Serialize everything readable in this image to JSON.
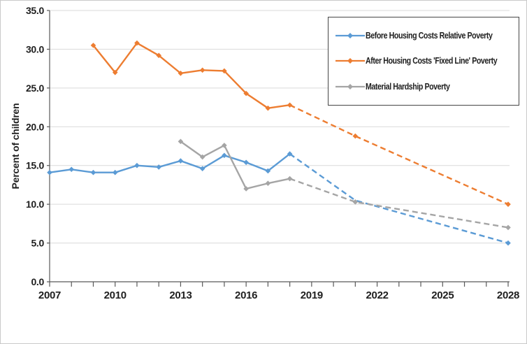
{
  "figure": {
    "background": "#ffffff",
    "border_color": "#c9c9c9"
  },
  "chart_data": {
    "type": "line",
    "title": "",
    "xlabel": "",
    "ylabel": "Percent of children",
    "ylim": [
      0,
      35
    ],
    "ytick_step": 5,
    "ytick_format_decimals": 1,
    "xlim": [
      2007,
      2028
    ],
    "xticks_labeled": [
      2007,
      2010,
      2013,
      2016,
      2019,
      2022,
      2025,
      2028
    ],
    "xtick_minor_step": 1,
    "grid": "horizontal",
    "grid_color": "#d9d9d9",
    "axis_color": "#595959",
    "text_color": "#1f1f1f",
    "legend_position": "top-right-inside",
    "series": [
      {
        "name": "Before Housing Costs Relative Poverty",
        "color": "#5b9bd5",
        "marker": "diamond",
        "solid": {
          "x": [
            2007,
            2008,
            2009,
            2010,
            2011,
            2012,
            2013,
            2014,
            2015,
            2016,
            2017,
            2018
          ],
          "y": [
            14.1,
            14.5,
            14.1,
            14.1,
            15.0,
            14.8,
            15.6,
            14.6,
            16.3,
            15.4,
            14.3,
            16.5
          ]
        },
        "dashed": {
          "x": [
            2018,
            2021,
            2028
          ],
          "y": [
            16.5,
            10.5,
            5.0
          ]
        },
        "dashed_marker_points": [
          [
            2028,
            5.0
          ]
        ]
      },
      {
        "name": "After Housing Costs 'Fixed Line' Poverty",
        "color": "#ed7d31",
        "marker": "diamond",
        "solid": {
          "x": [
            2009,
            2010,
            2011,
            2012,
            2013,
            2014,
            2015,
            2016,
            2017,
            2018
          ],
          "y": [
            30.5,
            27.0,
            30.8,
            29.2,
            26.9,
            27.3,
            27.2,
            24.3,
            22.4,
            22.8
          ]
        },
        "dashed": {
          "x": [
            2018,
            2021,
            2028
          ],
          "y": [
            22.8,
            18.8,
            10.0
          ]
        },
        "dashed_marker_points": [
          [
            2021,
            18.8
          ],
          [
            2028,
            10.0
          ]
        ]
      },
      {
        "name": "Material Hardship Poverty",
        "color": "#a5a5a5",
        "marker": "diamond",
        "solid": {
          "x": [
            2013,
            2014,
            2015,
            2016,
            2017,
            2018
          ],
          "y": [
            18.1,
            16.1,
            17.6,
            12.0,
            12.7,
            13.3
          ]
        },
        "dashed": {
          "x": [
            2018,
            2021,
            2028
          ],
          "y": [
            13.3,
            10.3,
            7.0
          ]
        },
        "dashed_marker_points": [
          [
            2021,
            10.3
          ],
          [
            2028,
            7.0
          ]
        ]
      }
    ]
  }
}
